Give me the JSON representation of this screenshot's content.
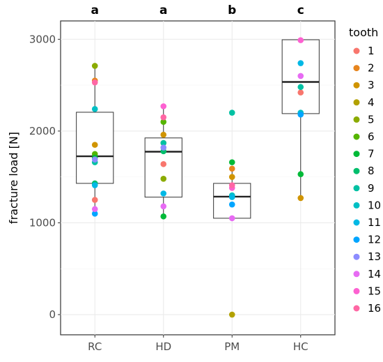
{
  "chart_data": {
    "type": "box+scatter",
    "categories": [
      "RC",
      "HD",
      "PM",
      "HC"
    ],
    "significance_letters": [
      "a",
      "a",
      "b",
      "c"
    ],
    "ylabel": "fracture load [N]",
    "xlabel": "",
    "ylim": [
      -220,
      3200
    ],
    "yticks": [
      0,
      1000,
      2000,
      3000
    ],
    "grid": true,
    "legend": {
      "title": "tooth",
      "placement": "right",
      "entries": [
        "1",
        "2",
        "3",
        "4",
        "5",
        "6",
        "7",
        "8",
        "9",
        "10",
        "11",
        "12",
        "13",
        "14",
        "15",
        "16"
      ],
      "colors": [
        "#F8766D",
        "#E7851E",
        "#D09400",
        "#B2A100",
        "#8BAB00",
        "#55B500",
        "#00BA38",
        "#00BE6C",
        "#00C1A3",
        "#00BFC4",
        "#00B8E5",
        "#00A5FF",
        "#8C8CFF",
        "#E76BF3",
        "#FD61D1",
        "#FF67A4"
      ]
    },
    "boxes": [
      {
        "category": "RC",
        "q1": 1430,
        "median": 1725,
        "q3": 2205,
        "whisker_low": 1100,
        "whisker_high": 2710
      },
      {
        "category": "HD",
        "q1": 1280,
        "median": 1775,
        "q3": 1925,
        "whisker_low": 1070,
        "whisker_high": 2270
      },
      {
        "category": "PM",
        "q1": 1050,
        "median": 1285,
        "q3": 1430,
        "whisker_low": 1050,
        "whisker_high": 1590
      },
      {
        "category": "HC",
        "q1": 2190,
        "median": 2535,
        "q3": 2995,
        "whisker_low": 1270,
        "whisker_high": 2995
      }
    ],
    "points": [
      {
        "category": "RC",
        "tooth": 1,
        "value": 1250
      },
      {
        "category": "RC",
        "tooth": 2,
        "value": 2550
      },
      {
        "category": "RC",
        "tooth": 3,
        "value": 1850
      },
      {
        "category": "RC",
        "tooth": 5,
        "value": 2710
      },
      {
        "category": "RC",
        "tooth": 6,
        "value": 1750
      },
      {
        "category": "RC",
        "tooth": 7,
        "value": 1710
      },
      {
        "category": "RC",
        "tooth": 8,
        "value": 1430
      },
      {
        "category": "RC",
        "tooth": 9,
        "value": 1660
      },
      {
        "category": "RC",
        "tooth": 10,
        "value": 2240
      },
      {
        "category": "RC",
        "tooth": 11,
        "value": 1410
      },
      {
        "category": "RC",
        "tooth": 12,
        "value": 1100
      },
      {
        "category": "RC",
        "tooth": 13,
        "value": 1690
      },
      {
        "category": "RC",
        "tooth": 14,
        "value": 1150
      },
      {
        "category": "RC",
        "tooth": 16,
        "value": 2530
      },
      {
        "category": "HD",
        "tooth": 1,
        "value": 1640
      },
      {
        "category": "HD",
        "tooth": 2,
        "value": 1870
      },
      {
        "category": "HD",
        "tooth": 3,
        "value": 1960
      },
      {
        "category": "HD",
        "tooth": 5,
        "value": 1480
      },
      {
        "category": "HD",
        "tooth": 6,
        "value": 2100
      },
      {
        "category": "HD",
        "tooth": 7,
        "value": 1070
      },
      {
        "category": "HD",
        "tooth": 8,
        "value": 1780
      },
      {
        "category": "HD",
        "tooth": 9,
        "value": 1870
      },
      {
        "category": "HD",
        "tooth": 11,
        "value": 1320
      },
      {
        "category": "HD",
        "tooth": 13,
        "value": 1820
      },
      {
        "category": "HD",
        "tooth": 14,
        "value": 1180
      },
      {
        "category": "HD",
        "tooth": 15,
        "value": 2270
      },
      {
        "category": "HD",
        "tooth": 16,
        "value": 2150
      },
      {
        "category": "PM",
        "tooth": 2,
        "value": 1590
      },
      {
        "category": "PM",
        "tooth": 3,
        "value": 1500
      },
      {
        "category": "PM",
        "tooth": 4,
        "value": 0
      },
      {
        "category": "PM",
        "tooth": 7,
        "value": 1660
      },
      {
        "category": "PM",
        "tooth": 9,
        "value": 2200
      },
      {
        "category": "PM",
        "tooth": 10,
        "value": 1300
      },
      {
        "category": "PM",
        "tooth": 11,
        "value": 1280
      },
      {
        "category": "PM",
        "tooth": 12,
        "value": 1200
      },
      {
        "category": "PM",
        "tooth": 14,
        "value": 1050
      },
      {
        "category": "PM",
        "tooth": 15,
        "value": 1380
      },
      {
        "category": "PM",
        "tooth": 16,
        "value": 1410
      },
      {
        "category": "HC",
        "tooth": 1,
        "value": 2420
      },
      {
        "category": "HC",
        "tooth": 3,
        "value": 1270
      },
      {
        "category": "HC",
        "tooth": 7,
        "value": 1530
      },
      {
        "category": "HC",
        "tooth": 9,
        "value": 2480
      },
      {
        "category": "HC",
        "tooth": 10,
        "value": 2200
      },
      {
        "category": "HC",
        "tooth": 11,
        "value": 2740
      },
      {
        "category": "HC",
        "tooth": 12,
        "value": 2180
      },
      {
        "category": "HC",
        "tooth": 14,
        "value": 2600
      },
      {
        "category": "HC",
        "tooth": 15,
        "value": 2990
      }
    ]
  }
}
